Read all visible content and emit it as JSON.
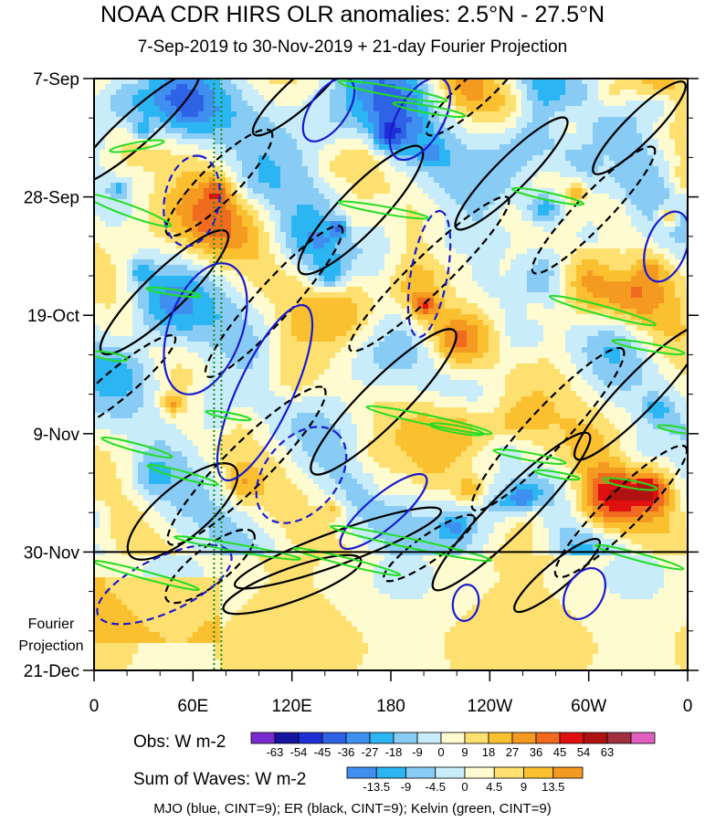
{
  "title": "NOAA CDR HIRS OLR anomalies: 2.5°N - 27.5°N",
  "subtitle": "7-Sep-2019 to 30-Nov-2019 + 21-day Fourier Projection",
  "chart_data": {
    "type": "heatmap",
    "x_ticks": [
      "0",
      "60E",
      "120E",
      "180",
      "120W",
      "60W",
      "0"
    ],
    "y_ticks": [
      "7-Sep",
      "28-Sep",
      "19-Oct",
      "9-Nov",
      "30-Nov",
      "21-Dec"
    ],
    "projection_label": "Fourier Projection",
    "obs_colorbar": {
      "label": "Obs: W m-2",
      "levels": [
        "-63",
        "-54",
        "-45",
        "-36",
        "-27",
        "-18",
        "-9",
        "0",
        "9",
        "18",
        "27",
        "36",
        "45",
        "54",
        "63"
      ],
      "colors": [
        "#7a2bd0",
        "#1414a0",
        "#1f2fd6",
        "#2f63e6",
        "#3f8ff0",
        "#2bb5f2",
        "#88ccf5",
        "#c8ecfa",
        "#fffbd0",
        "#fde070",
        "#fbc030",
        "#f59a20",
        "#f06a20",
        "#e01010",
        "#b01212",
        "#a03040",
        "#e060c0"
      ]
    },
    "waves_colorbar": {
      "label": "Sum of Waves: W m-2",
      "levels": [
        "-13.5",
        "-9",
        "-4.5",
        "0",
        "4.5",
        "9",
        "13.5"
      ],
      "colors": [
        "#3f8ff0",
        "#2bb5f2",
        "#88ccf5",
        "#c8ecfa",
        "#fffbd0",
        "#fde070",
        "#fbc030",
        "#f59a20"
      ]
    },
    "contour_legend": "MJO (blue, CINT=9); ER (black, CINT=9); Kelvin (green, CINT=9)",
    "wave_colors": {
      "mjo": "#1a1ad0",
      "er": "#000000",
      "kelvin": "#22dd22"
    },
    "reference_line_lon": "75E",
    "forecast_start": "30-Nov"
  }
}
